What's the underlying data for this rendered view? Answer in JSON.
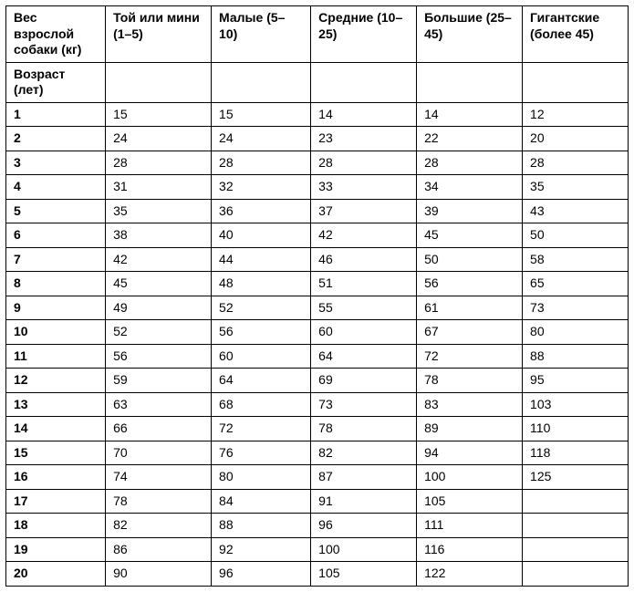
{
  "table": {
    "header_row": [
      "Вес взрослой собаки (кг)",
      "Той или мини (1–5)",
      "Малые (5–10)",
      "Средние (10–25)",
      "Большие (25–45)",
      "Гигантские (более 45)"
    ],
    "age_label": "Возраст (лет)",
    "columns": [
      "age",
      "toy",
      "small",
      "medium",
      "large",
      "giant"
    ],
    "rows": [
      [
        "1",
        "15",
        "15",
        "14",
        "14",
        "12"
      ],
      [
        "2",
        "24",
        "24",
        "23",
        "22",
        "20"
      ],
      [
        "3",
        "28",
        "28",
        "28",
        "28",
        "28"
      ],
      [
        "4",
        "31",
        "32",
        "33",
        "34",
        "35"
      ],
      [
        "5",
        "35",
        "36",
        "37",
        "39",
        "43"
      ],
      [
        "6",
        "38",
        "40",
        "42",
        "45",
        "50"
      ],
      [
        "7",
        "42",
        "44",
        "46",
        "50",
        "58"
      ],
      [
        "8",
        "45",
        "48",
        "51",
        "56",
        "65"
      ],
      [
        "9",
        "49",
        "52",
        "55",
        "61",
        "73"
      ],
      [
        "10",
        "52",
        "56",
        "60",
        "67",
        "80"
      ],
      [
        "11",
        "56",
        "60",
        "64",
        "72",
        "88"
      ],
      [
        "12",
        "59",
        "64",
        "69",
        "78",
        "95"
      ],
      [
        "13",
        "63",
        "68",
        "73",
        "83",
        "103"
      ],
      [
        "14",
        "66",
        "72",
        "78",
        "89",
        "110"
      ],
      [
        "15",
        "70",
        "76",
        "82",
        "94",
        "118"
      ],
      [
        "16",
        "74",
        "80",
        "87",
        "100",
        "125"
      ],
      [
        "17",
        "78",
        "84",
        "91",
        "105",
        ""
      ],
      [
        "18",
        "82",
        "88",
        "96",
        "111",
        ""
      ],
      [
        "19",
        "86",
        "92",
        "100",
        "116",
        ""
      ],
      [
        "20",
        "90",
        "96",
        "105",
        "122",
        ""
      ]
    ],
    "style": {
      "border_color": "#000000",
      "background_color": "#ffffff",
      "font_family": "Arial",
      "header_fontsize": 14,
      "cell_fontsize": 14,
      "header_weight": 700,
      "age_col_weight": 700,
      "col_widths_pct": [
        16,
        17,
        16,
        17,
        17,
        17
      ]
    }
  }
}
